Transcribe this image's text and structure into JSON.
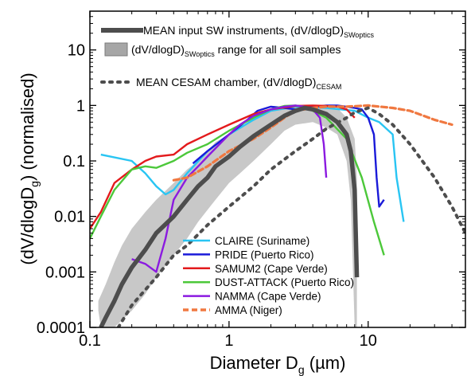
{
  "chart_data": {
    "type": "line",
    "x_scale": "log",
    "y_scale": "log",
    "xlim": [
      0.1,
      50
    ],
    "ylim": [
      0.0001,
      50
    ],
    "grid": false,
    "xlabel_main": "Diameter D",
    "xlabel_sub": "g",
    "xlabel_unit": " (µm)",
    "ylabel_main": "(dV/dlogD",
    "ylabel_sub": "g",
    "ylabel_tail": ") (normalised)",
    "x_ticks": [
      {
        "v": 0.1,
        "label": "0.1"
      },
      {
        "v": 1,
        "label": "1"
      },
      {
        "v": 10,
        "label": "10"
      }
    ],
    "y_ticks": [
      {
        "v": 0.0001,
        "label": "0.0001"
      },
      {
        "v": 0.001,
        "label": "0.001"
      },
      {
        "v": 0.01,
        "label": "0.01"
      },
      {
        "v": 0.1,
        "label": "0.1"
      },
      {
        "v": 1,
        "label": "1"
      },
      {
        "v": 10,
        "label": "10"
      }
    ],
    "legend_top": [
      {
        "text": "MEAN input SW instruments, (dV/dlogD)",
        "sub": "SWoptics",
        "tail": "",
        "style": "thick",
        "color": "#4d4d4d"
      },
      {
        "text": "(dV/dlogD)",
        "sub": "SWoptics",
        "tail": " range for all soil samples",
        "style": "box",
        "color": "#a6a6a6"
      },
      {
        "text": "MEAN CESAM chamber, (dV/dlogD)",
        "sub": "CESAM",
        "tail": "",
        "style": "dotted",
        "color": "#4d4d4d"
      }
    ],
    "legend_bottom": [
      {
        "name": "CLAIRE (Suriname)",
        "color": "#29c5f3",
        "style": "solid"
      },
      {
        "name": "PRIDE (Puerto Rico)",
        "color": "#1a1ad9",
        "style": "solid"
      },
      {
        "name": "SAMUM2 (Cape Verde)",
        "color": "#e31a1c",
        "style": "solid"
      },
      {
        "name": "DUST-ATTACK (Puerto Rico)",
        "color": "#4cc83a",
        "style": "solid"
      },
      {
        "name": "NAMMA (Cape Verde)",
        "color": "#8b1ae0",
        "style": "solid"
      },
      {
        "name": "AMMA (Niger)",
        "color": "#f07840",
        "style": "dashed"
      }
    ],
    "band": {
      "upper": [
        [
          0.115,
          0.0003
        ],
        [
          0.13,
          0.0006
        ],
        [
          0.15,
          0.0015
        ],
        [
          0.17,
          0.003
        ],
        [
          0.2,
          0.006
        ],
        [
          0.25,
          0.012
        ],
        [
          0.3,
          0.02
        ],
        [
          0.4,
          0.04
        ],
        [
          0.5,
          0.07
        ],
        [
          0.6,
          0.1
        ],
        [
          0.7,
          0.15
        ],
        [
          0.8,
          0.22
        ],
        [
          1,
          0.3
        ],
        [
          1.2,
          0.4
        ],
        [
          1.5,
          0.6
        ],
        [
          2,
          0.85
        ],
        [
          3,
          1.0
        ],
        [
          4,
          1.0
        ],
        [
          5,
          0.95
        ],
        [
          6,
          0.9
        ],
        [
          7,
          0.6
        ],
        [
          8,
          0.25
        ],
        [
          8.3,
          0.05
        ]
      ],
      "lower": [
        [
          8.3,
          0.0001
        ],
        [
          8,
          0.0001
        ],
        [
          7.5,
          0.02
        ],
        [
          7,
          0.1
        ],
        [
          6,
          0.3
        ],
        [
          5,
          0.4
        ],
        [
          4,
          0.5
        ],
        [
          3,
          0.45
        ],
        [
          2.5,
          0.35
        ],
        [
          2,
          0.2
        ],
        [
          1.5,
          0.1
        ],
        [
          1.2,
          0.06
        ],
        [
          1,
          0.04
        ],
        [
          0.8,
          0.02
        ],
        [
          0.6,
          0.008
        ],
        [
          0.5,
          0.004
        ],
        [
          0.4,
          0.002
        ],
        [
          0.3,
          0.0008
        ],
        [
          0.25,
          0.0004
        ],
        [
          0.2,
          0.0002
        ],
        [
          0.15,
          0.0001
        ],
        [
          0.12,
          0.0001
        ],
        [
          0.115,
          0.0002
        ]
      ]
    },
    "series": [
      {
        "name": "CLAIRE (Suriname)",
        "color": "#29c5f3",
        "dash": "",
        "width": 2.4,
        "points": [
          [
            0.12,
            0.13
          ],
          [
            0.2,
            0.1
          ],
          [
            0.25,
            0.06
          ],
          [
            0.3,
            0.035
          ],
          [
            0.35,
            0.025
          ],
          [
            0.4,
            0.03
          ],
          [
            0.5,
            0.06
          ],
          [
            0.7,
            0.15
          ],
          [
            1,
            0.3
          ],
          [
            1.5,
            0.55
          ],
          [
            2,
            0.8
          ],
          [
            3,
            0.95
          ],
          [
            5,
            0.9
          ],
          [
            8,
            0.8
          ],
          [
            10,
            0.6
          ],
          [
            12,
            0.5
          ],
          [
            15,
            0.3
          ],
          [
            16,
            0.05
          ],
          [
            18,
            0.008
          ]
        ]
      },
      {
        "name": "PRIDE (Puerto Rico)",
        "color": "#1a1ad9",
        "dash": "",
        "width": 2.4,
        "points": [
          [
            0.55,
            0.09
          ],
          [
            0.7,
            0.15
          ],
          [
            1,
            0.3
          ],
          [
            1.3,
            0.5
          ],
          [
            1.6,
            0.8
          ],
          [
            2,
            0.95
          ],
          [
            2.5,
            0.9
          ],
          [
            3,
            0.85
          ],
          [
            4,
            0.95
          ],
          [
            5,
            1.0
          ],
          [
            6,
            1.0
          ],
          [
            7,
            0.95
          ],
          [
            8,
            0.9
          ],
          [
            9,
            0.85
          ],
          [
            10,
            0.6
          ],
          [
            11,
            0.3
          ],
          [
            11.5,
            0.05
          ],
          [
            12,
            0.015
          ],
          [
            13,
            0.02
          ]
        ]
      },
      {
        "name": "SAMUM2 (Cape Verde)",
        "color": "#e31a1c",
        "dash": "",
        "width": 2.4,
        "points": [
          [
            0.1,
            0.006
          ],
          [
            0.12,
            0.012
          ],
          [
            0.15,
            0.04
          ],
          [
            0.2,
            0.07
          ],
          [
            0.25,
            0.1
          ],
          [
            0.3,
            0.12
          ],
          [
            0.4,
            0.13
          ],
          [
            0.5,
            0.2
          ],
          [
            0.7,
            0.3
          ],
          [
            1,
            0.45
          ],
          [
            1.5,
            0.7
          ],
          [
            2,
            0.85
          ],
          [
            3,
            0.98
          ],
          [
            4,
            1.0
          ],
          [
            5,
            0.98
          ],
          [
            6,
            0.95
          ],
          [
            7,
            0.85
          ],
          [
            8,
            0.6
          ]
        ]
      },
      {
        "name": "DUST-ATTACK (Puerto Rico)",
        "color": "#4cc83a",
        "dash": "",
        "width": 2.4,
        "points": [
          [
            0.1,
            0.004
          ],
          [
            0.12,
            0.01
          ],
          [
            0.15,
            0.03
          ],
          [
            0.2,
            0.07
          ],
          [
            0.25,
            0.08
          ],
          [
            0.3,
            0.075
          ],
          [
            0.4,
            0.1
          ],
          [
            0.5,
            0.14
          ],
          [
            0.7,
            0.2
          ],
          [
            1,
            0.35
          ],
          [
            1.5,
            0.6
          ],
          [
            2,
            0.85
          ],
          [
            2.5,
            0.98
          ],
          [
            3,
            1.0
          ],
          [
            3.5,
            0.95
          ],
          [
            5,
            0.6
          ],
          [
            7,
            0.25
          ],
          [
            9,
            0.05
          ],
          [
            11,
            0.008
          ],
          [
            13,
            0.002
          ]
        ]
      },
      {
        "name": "NAMMA (Cape Verde)",
        "color": "#8b1ae0",
        "dash": "",
        "width": 2.4,
        "points": [
          [
            0.2,
            0.0017
          ],
          [
            0.25,
            0.0014
          ],
          [
            0.3,
            0.001
          ],
          [
            0.35,
            0.004
          ],
          [
            0.4,
            0.02
          ],
          [
            0.5,
            0.05
          ],
          [
            0.6,
            0.08
          ],
          [
            0.7,
            0.12
          ],
          [
            1,
            0.3
          ],
          [
            1.2,
            0.45
          ],
          [
            1.5,
            0.65
          ],
          [
            2,
            0.85
          ],
          [
            2.5,
            0.95
          ],
          [
            3,
            1.0
          ],
          [
            3.5,
            0.95
          ],
          [
            4,
            0.85
          ],
          [
            4.5,
            0.6
          ],
          [
            4.8,
            0.2
          ],
          [
            5,
            0.05
          ]
        ]
      },
      {
        "name": "AMMA (Niger)",
        "color": "#f07840",
        "dash": "7,4",
        "width": 3.2,
        "points": [
          [
            0.4,
            0.045
          ],
          [
            0.5,
            0.05
          ],
          [
            0.7,
            0.08
          ],
          [
            1,
            0.15
          ],
          [
            1.5,
            0.25
          ],
          [
            2,
            0.4
          ],
          [
            2.5,
            0.6
          ],
          [
            3,
            0.8
          ],
          [
            4,
            0.9
          ],
          [
            5,
            0.95
          ],
          [
            7,
            0.95
          ],
          [
            10,
            1.0
          ],
          [
            15,
            0.9
          ],
          [
            20,
            0.8
          ],
          [
            30,
            0.55
          ],
          [
            40,
            0.45
          ]
        ]
      },
      {
        "name": "MEAN input SW instruments",
        "color": "#4d4d4d",
        "dash": "",
        "width": 5.5,
        "points": [
          [
            0.12,
            0.0001
          ],
          [
            0.13,
            0.00015
          ],
          [
            0.15,
            0.0003
          ],
          [
            0.17,
            0.0006
          ],
          [
            0.2,
            0.0012
          ],
          [
            0.25,
            0.0025
          ],
          [
            0.3,
            0.005
          ],
          [
            0.4,
            0.01
          ],
          [
            0.5,
            0.02
          ],
          [
            0.6,
            0.035
          ],
          [
            0.7,
            0.05
          ],
          [
            0.8,
            0.08
          ],
          [
            1,
            0.12
          ],
          [
            1.2,
            0.18
          ],
          [
            1.5,
            0.28
          ],
          [
            2,
            0.45
          ],
          [
            2.5,
            0.65
          ],
          [
            3,
            0.8
          ],
          [
            3.5,
            0.9
          ],
          [
            4,
            0.85
          ],
          [
            5,
            0.7
          ],
          [
            6,
            0.5
          ],
          [
            7,
            0.3
          ],
          [
            7.5,
            0.15
          ],
          [
            8,
            0.03
          ],
          [
            8.3,
            0.0008
          ]
        ]
      },
      {
        "name": "MEAN CESAM chamber",
        "color": "#4d4d4d",
        "dash": "3,7",
        "width": 4,
        "points": [
          [
            0.16,
            0.0001
          ],
          [
            0.2,
            0.00025
          ],
          [
            0.3,
            0.0008
          ],
          [
            0.4,
            0.002
          ],
          [
            0.5,
            0.003
          ],
          [
            0.7,
            0.007
          ],
          [
            1,
            0.015
          ],
          [
            1.5,
            0.035
          ],
          [
            2,
            0.07
          ],
          [
            3,
            0.15
          ],
          [
            4,
            0.25
          ],
          [
            5,
            0.38
          ],
          [
            7,
            0.6
          ],
          [
            8,
            0.75
          ],
          [
            10,
            0.9
          ],
          [
            12,
            0.7
          ],
          [
            15,
            0.45
          ],
          [
            20,
            0.2
          ],
          [
            30,
            0.05
          ],
          [
            40,
            0.015
          ],
          [
            50,
            0.005
          ]
        ]
      }
    ]
  }
}
